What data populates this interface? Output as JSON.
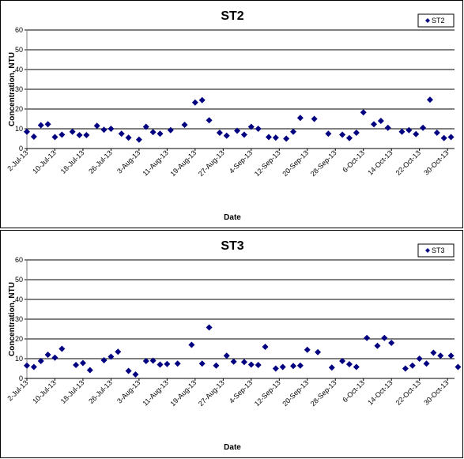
{
  "chart_data": [
    {
      "type": "scatter",
      "title": "ST2",
      "xlabel": "Date",
      "ylabel": "Concentration, NTU",
      "ylim": [
        0,
        60
      ],
      "yticks": [
        0,
        10,
        20,
        30,
        40,
        50,
        60
      ],
      "xlim": [
        "2-Jul-13",
        "1-Nov-13"
      ],
      "xtick_labels": [
        "2-Jul-13",
        "10-Jul-13",
        "18-Jul-13",
        "26-Jul-13",
        "3-Aug-13",
        "11-Aug-13",
        "19-Aug-13",
        "27-Aug-13",
        "4-Sep-13",
        "12-Sep-13",
        "20-Sep-13",
        "28-Sep-13",
        "6-Oct-13",
        "14-Oct-13",
        "22-Oct-13",
        "30-Oct-13"
      ],
      "grid": "horizontal",
      "legend": "top-right",
      "marker": "diamond",
      "color": "#000080",
      "series": [
        {
          "name": "ST2",
          "points": [
            [
              "2-Jul-13",
              8.5
            ],
            [
              "4-Jul-13",
              6
            ],
            [
              "6-Jul-13",
              11.8
            ],
            [
              "8-Jul-13",
              12.3
            ],
            [
              "10-Jul-13",
              5.8
            ],
            [
              "12-Jul-13",
              7
            ],
            [
              "15-Jul-13",
              8.5
            ],
            [
              "17-Jul-13",
              6.8
            ],
            [
              "19-Jul-13",
              6.8
            ],
            [
              "22-Jul-13",
              11.5
            ],
            [
              "24-Jul-13",
              9.5
            ],
            [
              "26-Jul-13",
              10
            ],
            [
              "29-Jul-13",
              7.5
            ],
            [
              "31-Jul-13",
              5.5
            ],
            [
              "3-Aug-13",
              4.5
            ],
            [
              "5-Aug-13",
              11
            ],
            [
              "7-Aug-13",
              8.3
            ],
            [
              "9-Aug-13",
              7.5
            ],
            [
              "12-Aug-13",
              9.3
            ],
            [
              "16-Aug-13",
              12
            ],
            [
              "19-Aug-13",
              23.3
            ],
            [
              "21-Aug-13",
              24.5
            ],
            [
              "23-Aug-13",
              14.3
            ],
            [
              "26-Aug-13",
              8
            ],
            [
              "28-Aug-13",
              6.5
            ],
            [
              "31-Aug-13",
              9
            ],
            [
              "2-Sep-13",
              7
            ],
            [
              "4-Sep-13",
              11
            ],
            [
              "6-Sep-13",
              10
            ],
            [
              "9-Sep-13",
              5.8
            ],
            [
              "11-Sep-13",
              5.5
            ],
            [
              "14-Sep-13",
              5
            ],
            [
              "16-Sep-13",
              8.5
            ],
            [
              "18-Sep-13",
              15.5
            ],
            [
              "22-Sep-13",
              15
            ],
            [
              "26-Sep-13",
              7.5
            ],
            [
              "30-Sep-13",
              7
            ],
            [
              "2-Oct-13",
              5.3
            ],
            [
              "4-Oct-13",
              8
            ],
            [
              "6-Oct-13",
              18.3
            ],
            [
              "9-Oct-13",
              12.3
            ],
            [
              "11-Oct-13",
              14
            ],
            [
              "13-Oct-13",
              10.5
            ],
            [
              "17-Oct-13",
              8.5
            ],
            [
              "19-Oct-13",
              9.3
            ],
            [
              "21-Oct-13",
              7.3
            ],
            [
              "23-Oct-13",
              10.5
            ],
            [
              "25-Oct-13",
              24.7
            ],
            [
              "27-Oct-13",
              8
            ],
            [
              "29-Oct-13",
              5.3
            ],
            [
              "31-Oct-13",
              5.8
            ]
          ]
        }
      ]
    },
    {
      "type": "scatter",
      "title": "ST3",
      "xlabel": "Date",
      "ylabel": "Concentration, NTU",
      "ylim": [
        0,
        60
      ],
      "yticks": [
        0,
        10,
        20,
        30,
        40,
        50,
        60
      ],
      "xlim": [
        "2-Jul-13",
        "1-Nov-13"
      ],
      "xtick_labels": [
        "2-Jul-13",
        "10-Jul-13",
        "18-Jul-13",
        "26-Jul-13",
        "3-Aug-13",
        "11-Aug-13",
        "19-Aug-13",
        "27-Aug-13",
        "4-Sep-13",
        "12-Sep-13",
        "20-Sep-13",
        "28-Sep-13",
        "6-Oct-13",
        "14-Oct-13",
        "22-Oct-13",
        "30-Oct-13"
      ],
      "grid": "horizontal",
      "legend": "top-right",
      "marker": "diamond",
      "color": "#000080",
      "series": [
        {
          "name": "ST3",
          "points": [
            [
              "2-Jul-13",
              6.5
            ],
            [
              "4-Jul-13",
              5.8
            ],
            [
              "6-Jul-13",
              8.8
            ],
            [
              "8-Jul-13",
              12
            ],
            [
              "10-Jul-13",
              10.5
            ],
            [
              "12-Jul-13",
              15
            ],
            [
              "16-Jul-13",
              6.8
            ],
            [
              "18-Jul-13",
              7.8
            ],
            [
              "20-Jul-13",
              4.2
            ],
            [
              "24-Jul-13",
              9.2
            ],
            [
              "26-Jul-13",
              11
            ],
            [
              "28-Jul-13",
              13.5
            ],
            [
              "31-Jul-13",
              3.8
            ],
            [
              "2-Aug-13",
              2
            ],
            [
              "5-Aug-13",
              8.8
            ],
            [
              "7-Aug-13",
              9
            ],
            [
              "9-Aug-13",
              7
            ],
            [
              "11-Aug-13",
              7.3
            ],
            [
              "14-Aug-13",
              7.5
            ],
            [
              "18-Aug-13",
              17
            ],
            [
              "21-Aug-13",
              7.5
            ],
            [
              "23-Aug-13",
              25.8
            ],
            [
              "25-Aug-13",
              6.5
            ],
            [
              "28-Aug-13",
              11.5
            ],
            [
              "30-Aug-13",
              8.5
            ],
            [
              "2-Sep-13",
              8.3
            ],
            [
              "4-Sep-13",
              7
            ],
            [
              "6-Sep-13",
              6.8
            ],
            [
              "8-Sep-13",
              16
            ],
            [
              "11-Sep-13",
              5
            ],
            [
              "13-Sep-13",
              5.8
            ],
            [
              "16-Sep-13",
              6.3
            ],
            [
              "18-Sep-13",
              6.5
            ],
            [
              "20-Sep-13",
              14.5
            ],
            [
              "23-Sep-13",
              13.3
            ],
            [
              "27-Sep-13",
              5.5
            ],
            [
              "30-Sep-13",
              8.8
            ],
            [
              "2-Oct-13",
              7.2
            ],
            [
              "4-Oct-13",
              5.8
            ],
            [
              "7-Oct-13",
              20.5
            ],
            [
              "10-Oct-13",
              16.5
            ],
            [
              "12-Oct-13",
              20.5
            ],
            [
              "14-Oct-13",
              18
            ],
            [
              "18-Oct-13",
              5
            ],
            [
              "20-Oct-13",
              6.5
            ],
            [
              "22-Oct-13",
              10
            ],
            [
              "24-Oct-13",
              7.5
            ],
            [
              "26-Oct-13",
              13
            ],
            [
              "28-Oct-13",
              11.5
            ],
            [
              "31-Oct-13",
              11.5
            ],
            [
              "2-Nov-13",
              5.8
            ]
          ]
        }
      ]
    }
  ]
}
